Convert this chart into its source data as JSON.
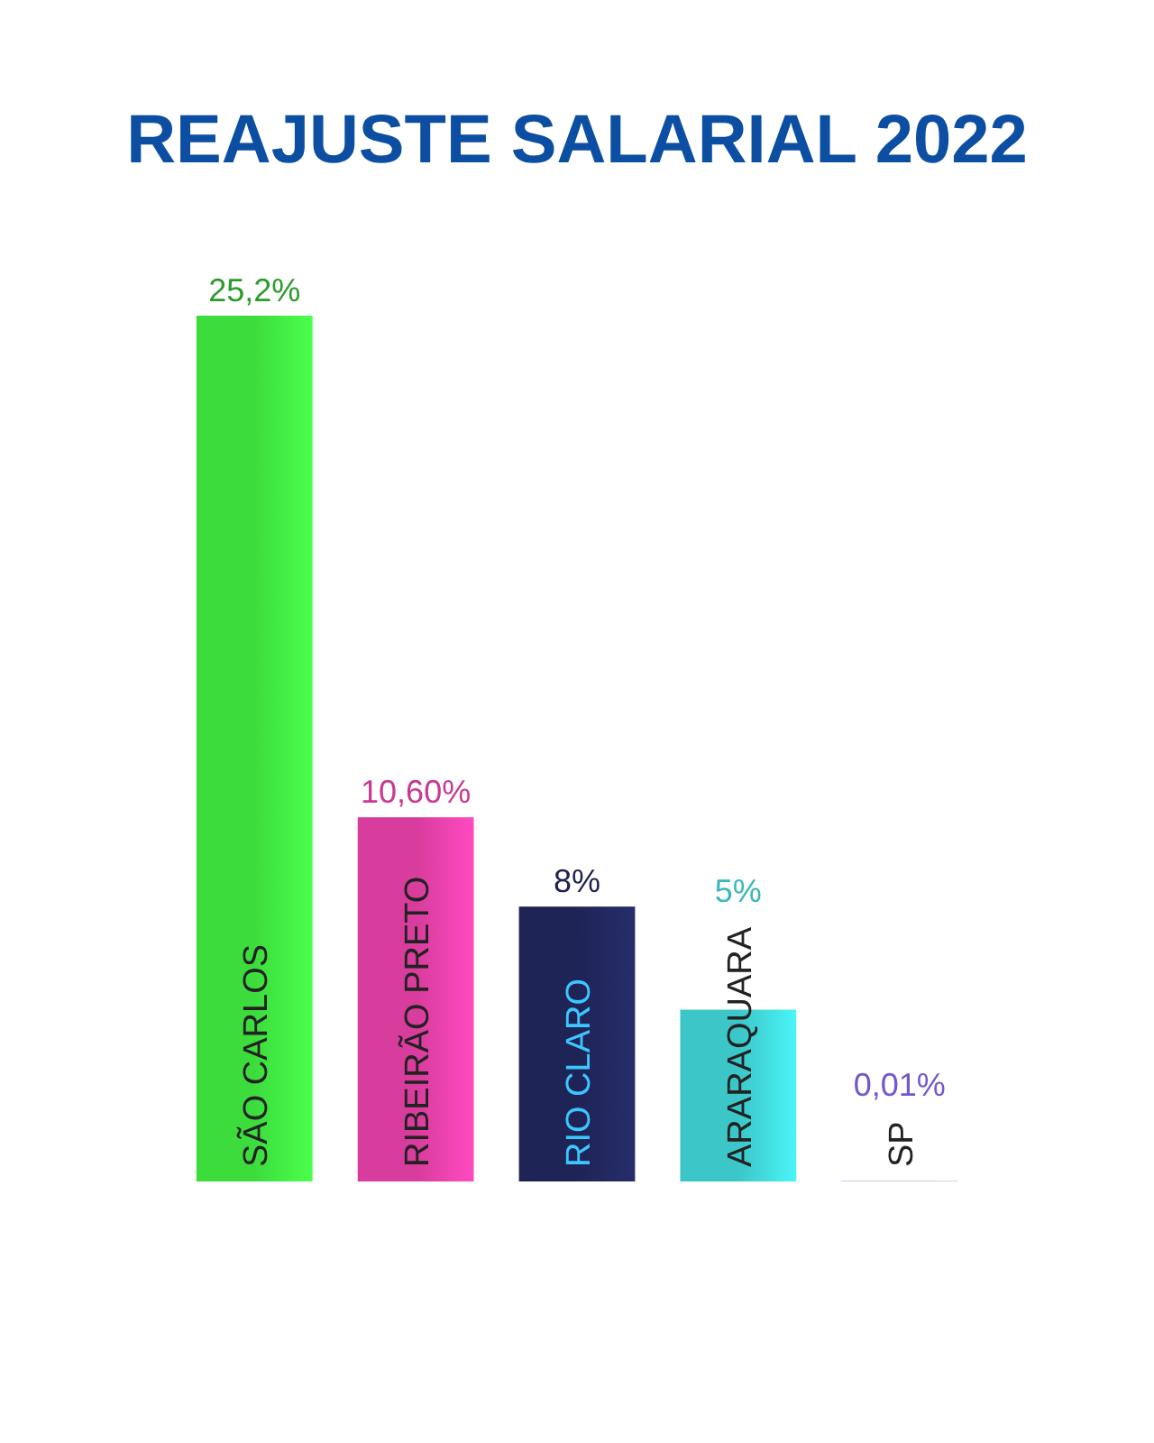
{
  "chart_data": {
    "type": "bar",
    "title": "REAJUSTE SALARIAL 2022",
    "categories": [
      "SÃO CARLOS",
      "RIBEIRÃO PRETO",
      "RIO CLARO",
      "ARARAQUARA",
      "SP"
    ],
    "values": [
      25.2,
      10.6,
      8,
      5,
      0.01
    ],
    "colors": [
      "#3ddc3d",
      "#d83c9c",
      "#1f2456",
      "#3cc6c8",
      "#7b5ce0"
    ],
    "value_labels": [
      "25,2%",
      "10,60%",
      "8%",
      "5%",
      "0,01%"
    ]
  }
}
